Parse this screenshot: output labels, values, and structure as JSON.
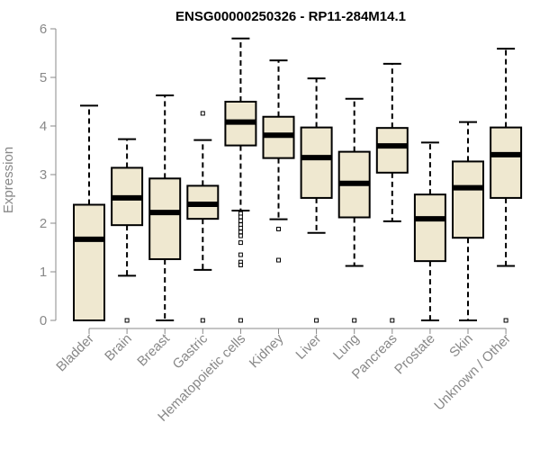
{
  "chart_data": {
    "type": "boxplot",
    "title": "ENSG00000250326 - RP11-284M14.1",
    "xlabel": "",
    "ylabel": "Expression",
    "ylim": [
      0,
      6
    ],
    "yticks": [
      0,
      1,
      2,
      3,
      4,
      5,
      6
    ],
    "box_fill": "#efe8d0",
    "categories": [
      "Bladder",
      "Brain",
      "Breast",
      "Gastric",
      "Hematopoietic cells",
      "Kidney",
      "Liver",
      "Lung",
      "Pancreas",
      "Prostate",
      "Skin",
      "Unknown / Other"
    ],
    "boxes": [
      {
        "name": "Bladder",
        "whisker_low": 0.0,
        "q1": 0.0,
        "median": 1.67,
        "q3": 2.38,
        "whisker_high": 4.42,
        "outliers": []
      },
      {
        "name": "Brain",
        "whisker_low": 0.92,
        "q1": 1.96,
        "median": 2.52,
        "q3": 3.14,
        "whisker_high": 3.73,
        "outliers": [
          0.0
        ]
      },
      {
        "name": "Breast",
        "whisker_low": 0.0,
        "q1": 1.26,
        "median": 2.22,
        "q3": 2.92,
        "whisker_high": 4.63,
        "outliers": []
      },
      {
        "name": "Gastric",
        "whisker_low": 1.04,
        "q1": 2.09,
        "median": 2.39,
        "q3": 2.77,
        "whisker_high": 3.71,
        "outliers": [
          4.26,
          0.0
        ]
      },
      {
        "name": "Hematopoietic cells",
        "whisker_low": 2.26,
        "q1": 3.6,
        "median": 4.08,
        "q3": 4.5,
        "whisker_high": 5.8,
        "outliers": [
          2.2,
          2.13,
          2.05,
          1.97,
          1.9,
          1.82,
          1.74,
          1.6,
          1.35,
          1.2,
          1.14,
          0.0
        ]
      },
      {
        "name": "Kidney",
        "whisker_low": 2.08,
        "q1": 3.34,
        "median": 3.81,
        "q3": 4.19,
        "whisker_high": 5.35,
        "outliers": [
          1.88,
          1.24
        ]
      },
      {
        "name": "Liver",
        "whisker_low": 1.8,
        "q1": 2.52,
        "median": 3.35,
        "q3": 3.97,
        "whisker_high": 4.98,
        "outliers": [
          0.0
        ]
      },
      {
        "name": "Lung",
        "whisker_low": 1.12,
        "q1": 2.12,
        "median": 2.82,
        "q3": 3.47,
        "whisker_high": 4.56,
        "outliers": [
          0.0
        ]
      },
      {
        "name": "Pancreas",
        "whisker_low": 2.04,
        "q1": 3.04,
        "median": 3.59,
        "q3": 3.96,
        "whisker_high": 5.28,
        "outliers": [
          0.0
        ]
      },
      {
        "name": "Prostate",
        "whisker_low": 0.0,
        "q1": 1.22,
        "median": 2.09,
        "q3": 2.59,
        "whisker_high": 3.66,
        "outliers": []
      },
      {
        "name": "Skin",
        "whisker_low": 0.0,
        "q1": 1.7,
        "median": 2.73,
        "q3": 3.27,
        "whisker_high": 4.08,
        "outliers": []
      },
      {
        "name": "Unknown / Other",
        "whisker_low": 1.12,
        "q1": 2.52,
        "median": 3.41,
        "q3": 3.97,
        "whisker_high": 5.59,
        "outliers": [
          0.0
        ]
      }
    ]
  }
}
